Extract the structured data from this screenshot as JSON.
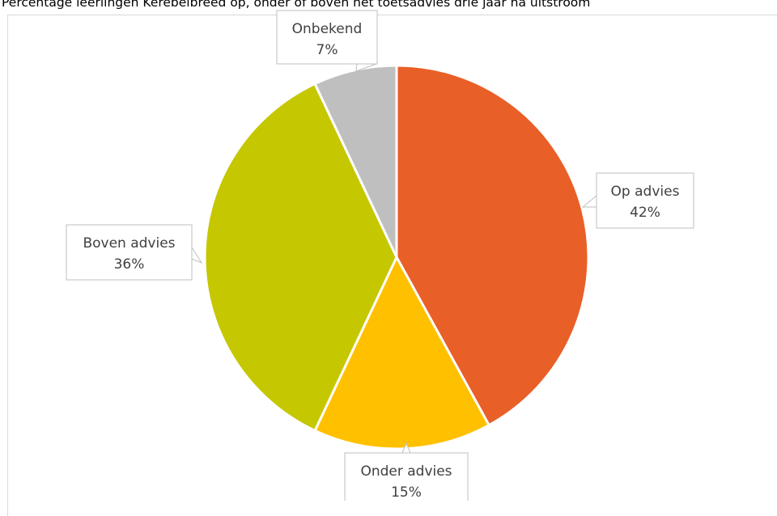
{
  "chart_data": {
    "type": "pie",
    "title": "Percentage leerlingen Kerebelbreed op, onder of boven het toetsadvies drie jaar na uitstroom",
    "slices": [
      {
        "name": "Op advies",
        "value": 42,
        "label": "42%",
        "color": "#E95F28"
      },
      {
        "name": "Onder advies",
        "value": 15,
        "label": "15%",
        "color": "#FFC000"
      },
      {
        "name": "Boven advies",
        "value": 36,
        "label": "36%",
        "color": "#C5C700"
      },
      {
        "name": "Onbekend",
        "value": 7,
        "label": "7%",
        "color": "#BFBFBF"
      }
    ],
    "start_angle_deg": 0,
    "direction": "clockwise",
    "legend": "none",
    "data_labels": "callouts"
  }
}
